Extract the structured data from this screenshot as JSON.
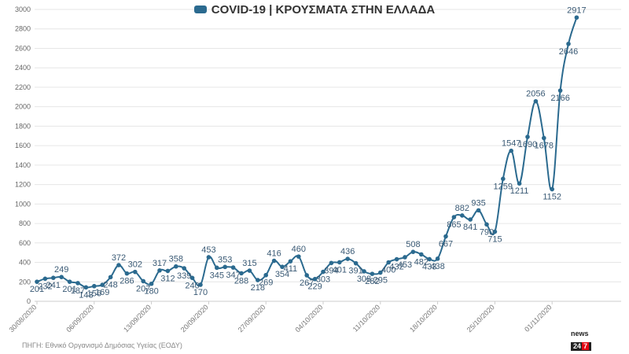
{
  "header": {
    "title": "COVID-19 | ΚΡΟΥΣΜΑΤΑ ΣΤΗΝ ΕΛΛΑΔΑ"
  },
  "footer": {
    "source": "ΠΗΓΗ: Εθνικό Οργανισμό Δημόσιας Υγείας (ΕΟΔΥ)"
  },
  "logo": {
    "top": "news",
    "badge_left": "24",
    "badge_right": "7"
  },
  "colors": {
    "series": "#2b6a8f",
    "grid": "#e6e6e6",
    "label": "#3a5a75"
  },
  "chart_data": {
    "type": "line",
    "title": "COVID-19 | ΚΡΟΥΣΜΑΤΑ ΣΤΗΝ ΕΛΛΑΔΑ",
    "xlabel": "",
    "ylabel": "",
    "ylim": [
      0,
      3000
    ],
    "yticks": [
      0,
      200,
      400,
      600,
      800,
      1000,
      1200,
      1400,
      1600,
      1800,
      2000,
      2200,
      2400,
      2600,
      2800,
      3000
    ],
    "grid": true,
    "legend": "top-center",
    "x_tick_labels": [
      "30/08/2020",
      "06/09/2020",
      "13/09/2020",
      "20/09/2020",
      "27/09/2020",
      "04/10/2020",
      "11/10/2020",
      "18/10/2020",
      "25/10/2020",
      "01/11/2020"
    ],
    "x_tick_every": 7,
    "series": [
      {
        "name": "COVID-19 | ΚΡΟΥΣΜΑΤΑ ΣΤΗΝ ΕΛΛΑΔΑ",
        "values": [
          201,
          232,
          241,
          249,
          201,
          187,
          143,
          156,
          169,
          248,
          372,
          286,
          302,
          207,
          180,
          317,
          312,
          358,
          339,
          240,
          170,
          453,
          345,
          353,
          347,
          288,
          315,
          218,
          269,
          416,
          354,
          411,
          460,
          267,
          229,
          303,
          394,
          401,
          436,
          391,
          308,
          282,
          295,
          400,
          432,
          453,
          508,
          482,
          433,
          438,
          667,
          865,
          882,
          841,
          935,
          790,
          715,
          1259,
          1547,
          1211,
          1690,
          2056,
          1678,
          1152,
          2166,
          2646,
          2917
        ]
      }
    ]
  }
}
